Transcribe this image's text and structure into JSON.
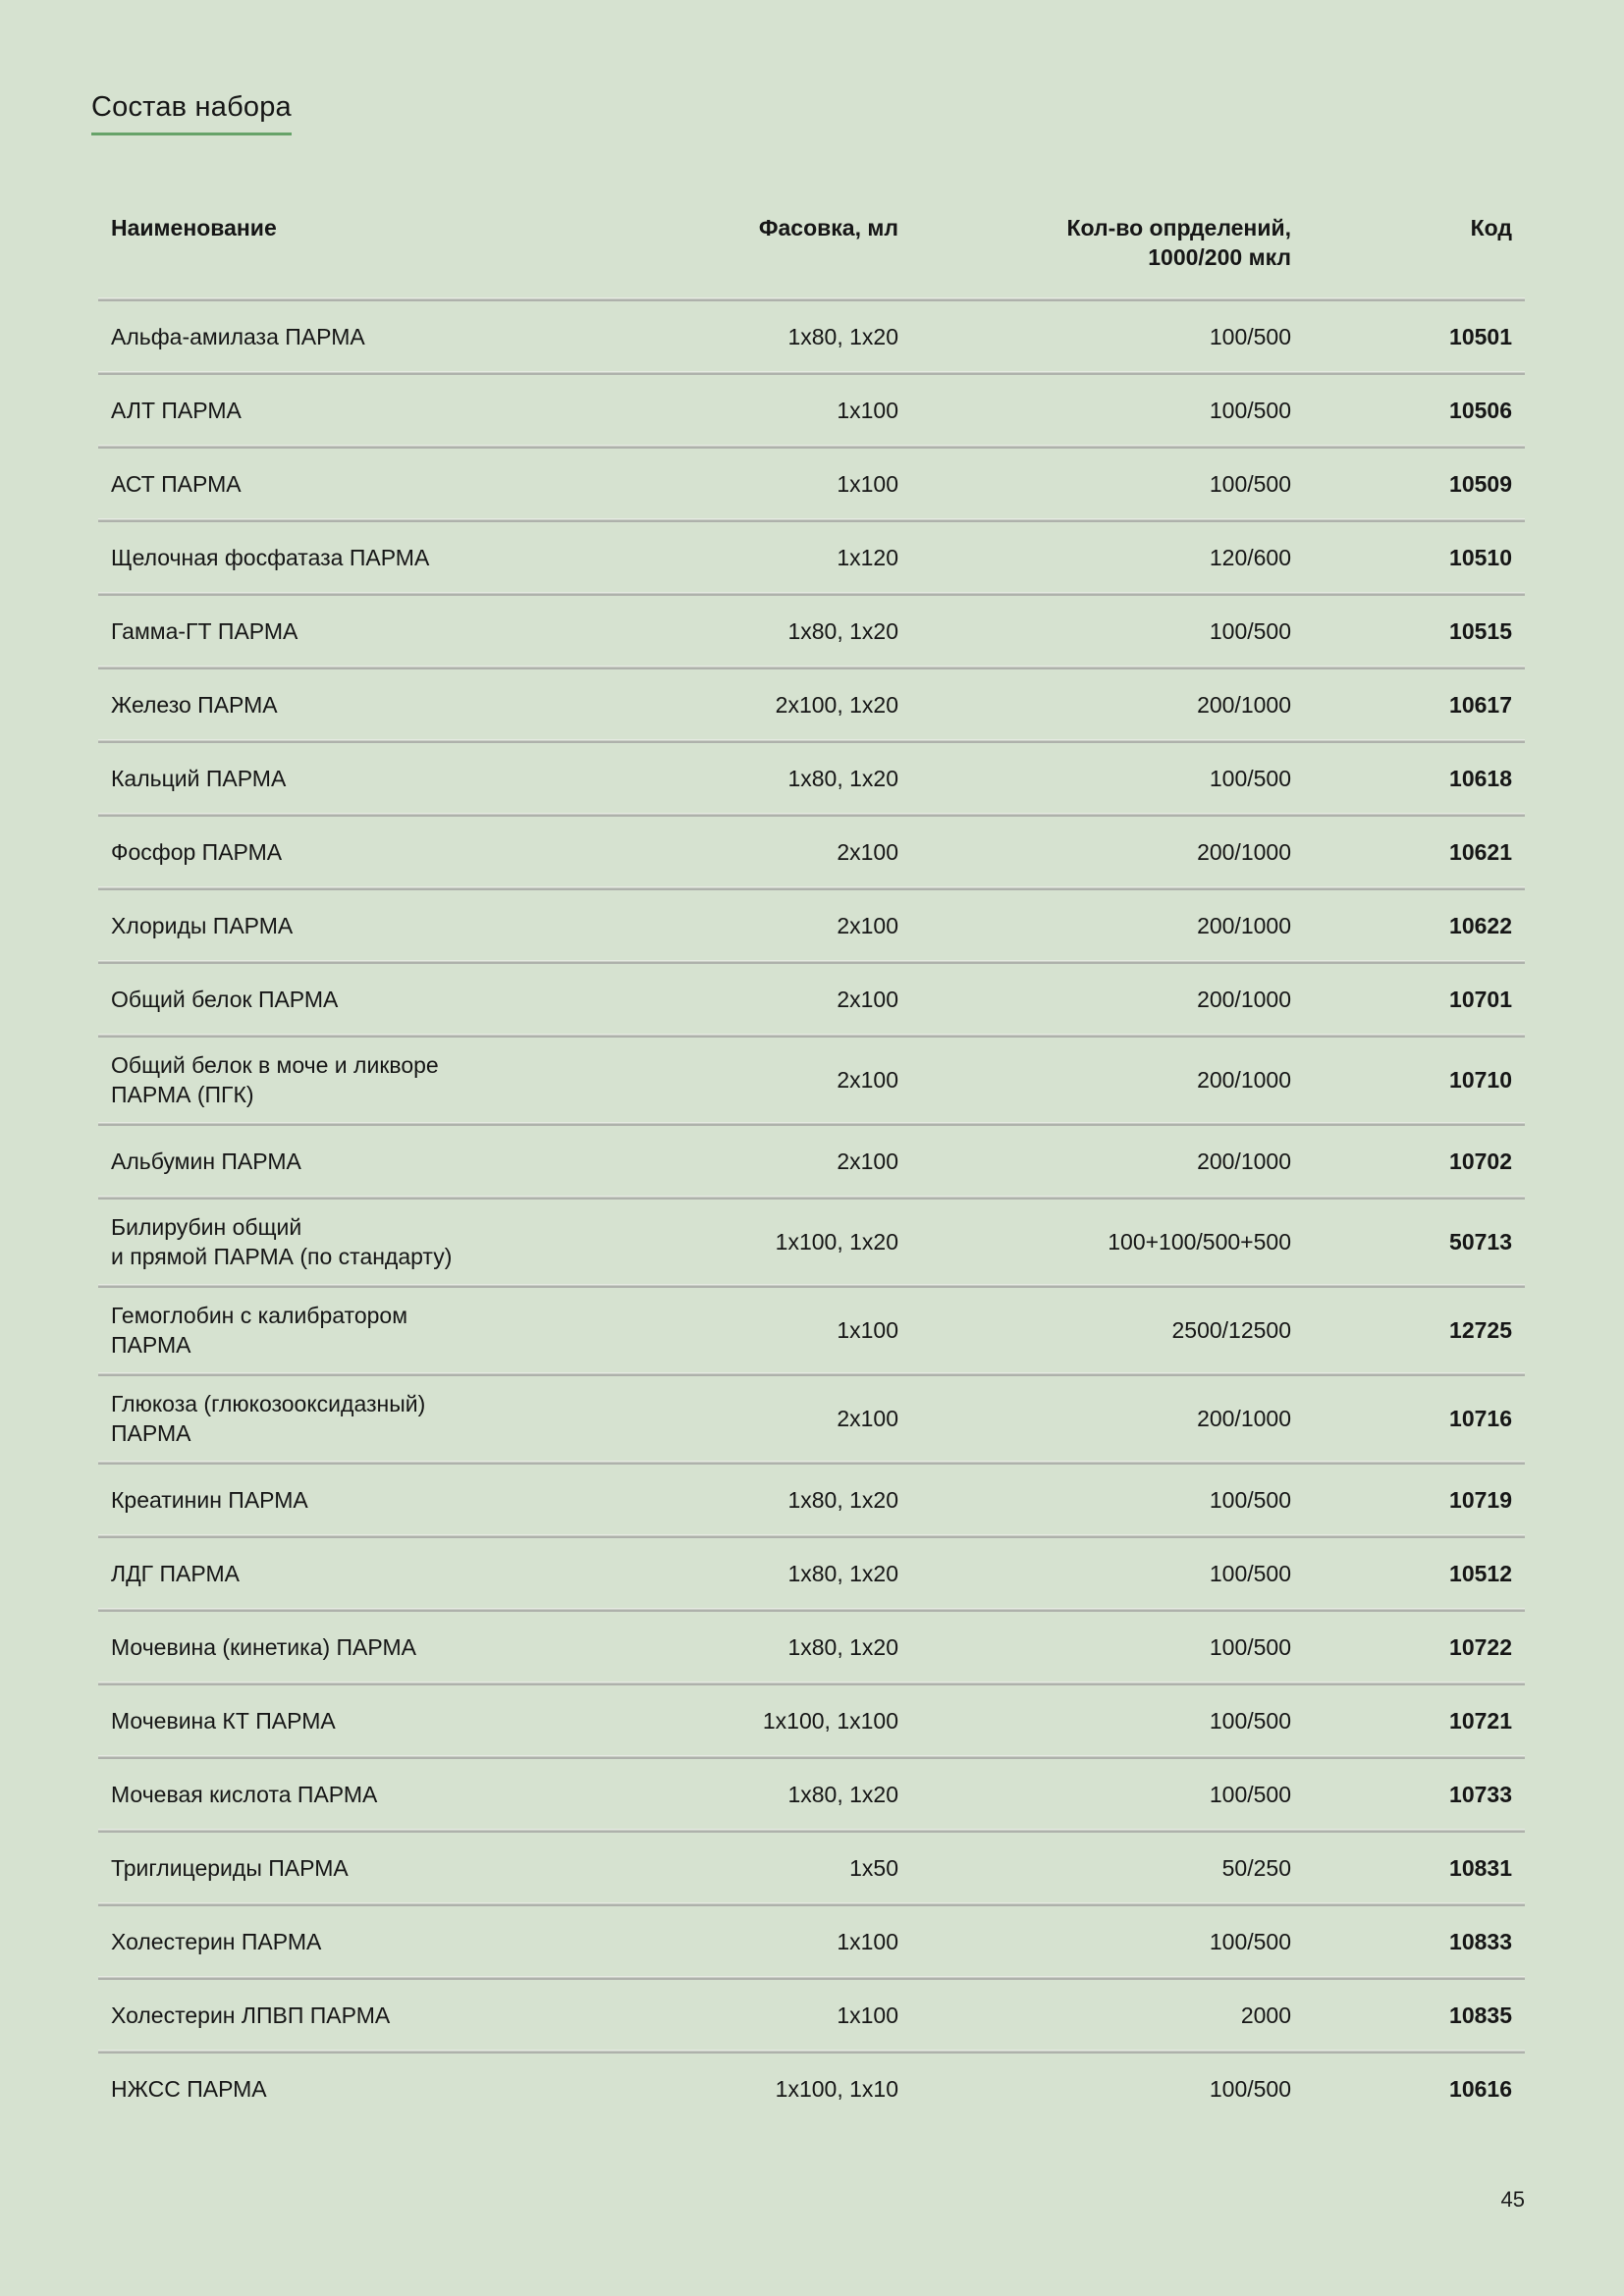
{
  "page": {
    "title": "Состав набора",
    "page_number": "45",
    "colors": {
      "background": "#d6e2d0",
      "accent_green": "#67a369",
      "separator_gray": "#aeb1ab"
    }
  },
  "table": {
    "headers": {
      "name": "Наименование",
      "pack": "Фасовка, мл",
      "qty": "Кол-во опрделений,\n1000/200 мкл",
      "code": "Код"
    },
    "rows": [
      {
        "name": "Альфа-амилаза ПАРМА",
        "pack": "1x80, 1x20",
        "qty": "100/500",
        "code": "10501"
      },
      {
        "name": "АЛТ ПАРМА",
        "pack": "1x100",
        "qty": "100/500",
        "code": "10506"
      },
      {
        "name": "АСТ ПАРМА",
        "pack": "1x100",
        "qty": "100/500",
        "code": "10509"
      },
      {
        "name": "Щелочная фосфатаза ПАРМА",
        "pack": "1x120",
        "qty": "120/600",
        "code": "10510"
      },
      {
        "name": "Гамма-ГТ ПАРМА",
        "pack": "1x80, 1x20",
        "qty": "100/500",
        "code": "10515"
      },
      {
        "name": "Железо ПАРМА",
        "pack": "2x100, 1x20",
        "qty": "200/1000",
        "code": "10617"
      },
      {
        "name": "Кальций ПАРМА",
        "pack": "1x80, 1x20",
        "qty": "100/500",
        "code": "10618"
      },
      {
        "name": "Фосфор ПАРМА",
        "pack": "2x100",
        "qty": "200/1000",
        "code": "10621"
      },
      {
        "name": "Хлориды ПАРМА",
        "pack": "2x100",
        "qty": "200/1000",
        "code": "10622"
      },
      {
        "name": "Общий белок ПАРМА",
        "pack": "2x100",
        "qty": "200/1000",
        "code": "10701"
      },
      {
        "name": "Общий белок в моче и ликворе\nПАРМА (ПГК)",
        "pack": "2x100",
        "qty": "200/1000",
        "code": "10710"
      },
      {
        "name": "Альбумин ПАРМА",
        "pack": "2x100",
        "qty": "200/1000",
        "code": "10702"
      },
      {
        "name": "Билирубин общий\nи прямой ПАРМА (по стандарту)",
        "pack": "1x100, 1x20",
        "qty": "100+100/500+500",
        "code": "50713"
      },
      {
        "name": "Гемоглобин с калибратором\nПАРМА",
        "pack": "1x100",
        "qty": "2500/12500",
        "code": "12725"
      },
      {
        "name": "Глюкоза (глюкозооксидазный)\nПАРМА",
        "pack": "2x100",
        "qty": "200/1000",
        "code": "10716"
      },
      {
        "name": "Креатинин ПАРМА",
        "pack": "1x80, 1x20",
        "qty": "100/500",
        "code": "10719"
      },
      {
        "name": "ЛДГ ПАРМА",
        "pack": "1x80, 1x20",
        "qty": "100/500",
        "code": "10512"
      },
      {
        "name": "Мочевина (кинетика) ПАРМА",
        "pack": "1x80, 1x20",
        "qty": "100/500",
        "code": "10722"
      },
      {
        "name": "Мочевина КТ ПАРМА",
        "pack": "1x100, 1x100",
        "qty": "100/500",
        "code": "10721"
      },
      {
        "name": "Мочевая кислота ПАРМА",
        "pack": "1x80, 1x20",
        "qty": "100/500",
        "code": "10733"
      },
      {
        "name": "Триглицериды ПАРМА",
        "pack": "1x50",
        "qty": "50/250",
        "code": "10831"
      },
      {
        "name": "Холестерин ПАРМА",
        "pack": "1x100",
        "qty": "100/500",
        "code": "10833"
      },
      {
        "name": "Холестерин ЛПВП ПАРМА",
        "pack": "1x100",
        "qty": "2000",
        "code": "10835"
      },
      {
        "name": "НЖСС ПАРМА",
        "pack": "1x100, 1x10",
        "qty": "100/500",
        "code": "10616"
      }
    ]
  }
}
